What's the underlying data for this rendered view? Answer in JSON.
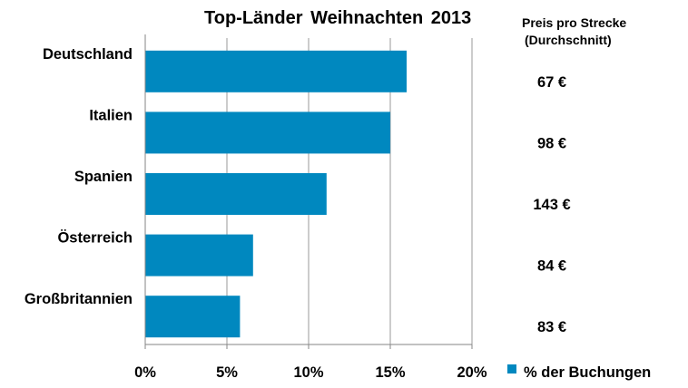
{
  "title": "Top-Länder  Weihnachten  2013",
  "price_header": {
    "line1": "Preis pro Strecke",
    "line2": "(Durchschnitt)"
  },
  "colors": {
    "bar": "#0088bf",
    "grid": "#9a9a9a",
    "axis": "#868686"
  },
  "chart_data": {
    "type": "bar",
    "orientation": "horizontal",
    "categories": [
      "Deutschland",
      "Italien",
      "Spanien",
      "Österreich",
      "Großbritannien"
    ],
    "series": [
      {
        "name": "%  der Buchungen",
        "values": [
          16.0,
          15.0,
          11.1,
          6.6,
          5.8
        ]
      }
    ],
    "xlim": [
      0,
      20
    ],
    "xticks": [
      0,
      5,
      10,
      15,
      20
    ],
    "xtick_labels": [
      "0%",
      "5%",
      "10%",
      "15%",
      "20%"
    ],
    "prices": [
      "67 €",
      "98 €",
      "143 €",
      "84 €",
      "83 €"
    ],
    "grid": true,
    "legend_position": "bottom-right"
  }
}
